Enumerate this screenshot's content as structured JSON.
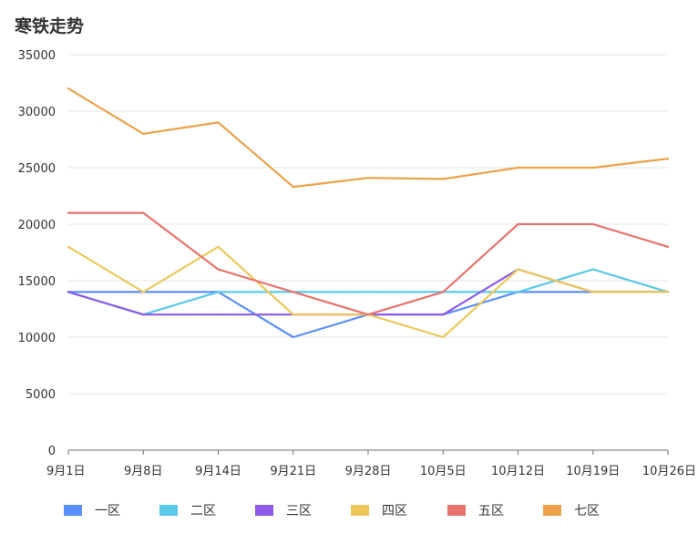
{
  "chart_data": {
    "type": "line",
    "title": "寒铁走势",
    "xlabel": "",
    "ylabel": "",
    "categories": [
      "9月1日",
      "9月8日",
      "9月14日",
      "9月21日",
      "9月28日",
      "10月5日",
      "10月12日",
      "10月19日",
      "10月26日"
    ],
    "ylim": [
      0,
      35000
    ],
    "yticks": [
      0,
      5000,
      10000,
      15000,
      20000,
      25000,
      30000,
      35000
    ],
    "grid": true,
    "legend_position": "bottom",
    "series": [
      {
        "name": "一区",
        "color": "#5b8ff9",
        "values": [
          14000,
          14000,
          14000,
          10000,
          12000,
          12000,
          14000,
          14000,
          14000
        ]
      },
      {
        "name": "二区",
        "color": "#5ac8e8",
        "values": [
          14000,
          12000,
          14000,
          14000,
          14000,
          14000,
          14000,
          16000,
          14000
        ]
      },
      {
        "name": "三区",
        "color": "#8e5be8",
        "values": [
          14000,
          12000,
          12000,
          12000,
          12000,
          12000,
          16000,
          14000,
          14000
        ]
      },
      {
        "name": "四区",
        "color": "#ecc85a",
        "values": [
          18000,
          14000,
          18000,
          12000,
          12000,
          10000,
          16000,
          14000,
          14000
        ]
      },
      {
        "name": "五区",
        "color": "#e8736c",
        "values": [
          21000,
          21000,
          16000,
          14000,
          12000,
          14000,
          20000,
          20000,
          18000
        ]
      },
      {
        "name": "七区",
        "color": "#eba24a",
        "values": [
          32000,
          28000,
          29000,
          23300,
          24100,
          24000,
          25000,
          25000,
          25800
        ]
      }
    ]
  }
}
